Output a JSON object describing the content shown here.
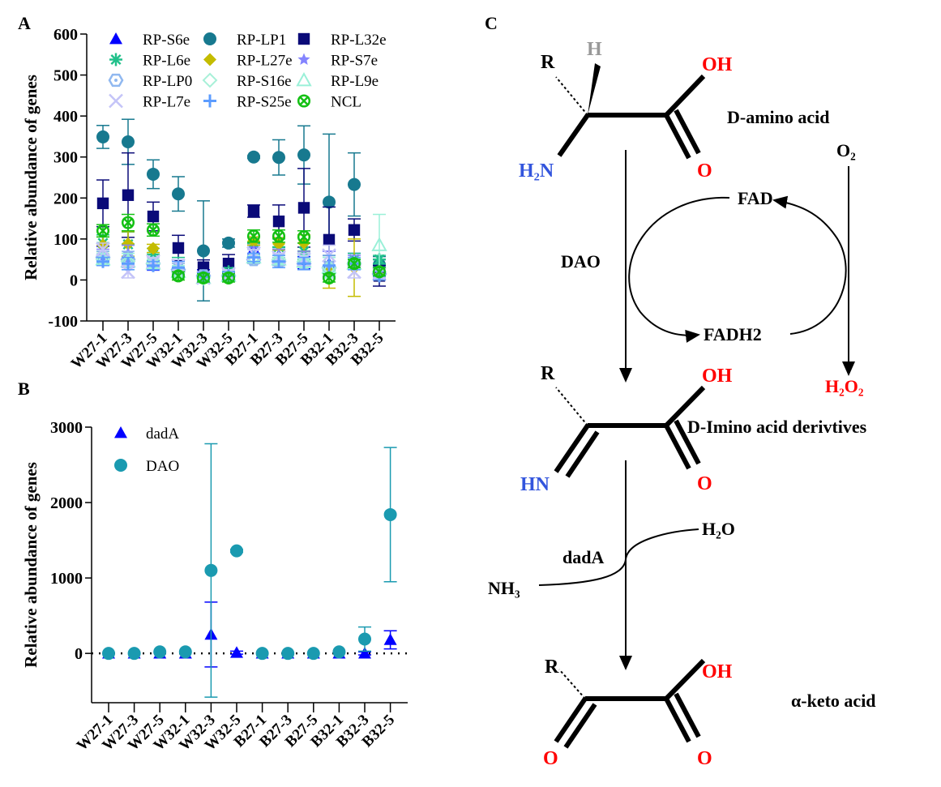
{
  "panels": {
    "a": "A",
    "b": "B",
    "c": "C"
  },
  "chart_data": [
    {
      "type": "scatter",
      "panel": "A",
      "ylabel": "Relative abundance of genes",
      "xlabel": "",
      "ylim": [
        -100,
        600
      ],
      "yticks": [
        -100,
        0,
        100,
        200,
        300,
        400,
        500,
        600
      ],
      "categories": [
        "W27-1",
        "W27-3",
        "W27-5",
        "W32-1",
        "W32-3",
        "W32-5",
        "B27-1",
        "B27-3",
        "B27-5",
        "B32-1",
        "B32-3",
        "B32-5"
      ],
      "legend": "top",
      "series": [
        {
          "name": "RP-S6e",
          "marker": "triangle",
          "color": "#0000ff",
          "values": [
            62,
            60,
            35,
            25,
            10,
            10,
            75,
            60,
            42,
            40,
            50,
            15
          ],
          "errors": [
            20,
            25,
            8,
            20,
            15,
            10,
            10,
            20,
            15,
            30,
            15,
            10
          ]
        },
        {
          "name": "RP-LP1",
          "marker": "circle",
          "color": "#17798f",
          "values": [
            349,
            337,
            258,
            210,
            71,
            90,
            300,
            299,
            305,
            190,
            233,
            37
          ],
          "errors": [
            28,
            55,
            35,
            42,
            122,
            10,
            3,
            43,
            71,
            166,
            77,
            20
          ]
        },
        {
          "name": "RP-L32e",
          "marker": "square",
          "color": "#0a0a78",
          "values": [
            187,
            207,
            155,
            78,
            31,
            40,
            168,
            143,
            176,
            98,
            122,
            10
          ],
          "errors": [
            57,
            103,
            35,
            31,
            18,
            22,
            15,
            40,
            96,
            80,
            27,
            25
          ]
        },
        {
          "name": "RP-L6e",
          "marker": "asterisk",
          "color": "#20c08a",
          "values": [
            90,
            87,
            62,
            30,
            10,
            20,
            90,
            80,
            70,
            35,
            50,
            50
          ],
          "errors": [
            20,
            30,
            15,
            25,
            10,
            10,
            15,
            20,
            20,
            20,
            15,
            10
          ]
        },
        {
          "name": "RP-L27e",
          "marker": "diamond",
          "color": "#c4bc00",
          "values": [
            85,
            88,
            77,
            20,
            5,
            10,
            95,
            88,
            90,
            20,
            30,
            10
          ],
          "errors": [
            20,
            30,
            10,
            20,
            10,
            10,
            10,
            15,
            20,
            40,
            70,
            10
          ]
        },
        {
          "name": "RP-S7e",
          "marker": "star",
          "color": "#8484ff",
          "values": [
            60,
            65,
            45,
            30,
            10,
            15,
            70,
            60,
            55,
            40,
            45,
            20
          ],
          "errors": [
            15,
            20,
            10,
            15,
            10,
            10,
            10,
            15,
            15,
            30,
            15,
            10
          ]
        },
        {
          "name": "RP-LP0",
          "marker": "hexagon",
          "color": "#90b8f0",
          "values": [
            55,
            50,
            40,
            25,
            10,
            10,
            50,
            45,
            40,
            30,
            40,
            15
          ],
          "errors": [
            15,
            20,
            10,
            15,
            10,
            10,
            10,
            10,
            15,
            25,
            15,
            10
          ]
        },
        {
          "name": "RP-S16e",
          "marker": "diamond-open",
          "color": "#a8f0d8",
          "values": [
            50,
            45,
            40,
            20,
            5,
            10,
            55,
            50,
            45,
            30,
            40,
            20
          ],
          "errors": [
            15,
            20,
            10,
            15,
            10,
            10,
            10,
            10,
            15,
            25,
            15,
            10
          ]
        },
        {
          "name": "RP-L9e",
          "marker": "triangle-open",
          "color": "#9af0d8",
          "values": [
            50,
            45,
            40,
            20,
            5,
            10,
            55,
            50,
            45,
            30,
            40,
            85
          ],
          "errors": [
            15,
            20,
            10,
            15,
            10,
            10,
            10,
            10,
            15,
            25,
            15,
            75
          ]
        },
        {
          "name": "RP-L7e",
          "marker": "cross",
          "color": "#c4c4f8",
          "values": [
            75,
            20,
            45,
            35,
            5,
            15,
            65,
            55,
            50,
            60,
            20,
            15
          ],
          "errors": [
            15,
            15,
            10,
            15,
            10,
            10,
            10,
            10,
            15,
            25,
            15,
            10
          ]
        },
        {
          "name": "RP-S25e",
          "marker": "plus",
          "color": "#5c9cff",
          "values": [
            45,
            40,
            35,
            30,
            8,
            10,
            55,
            45,
            40,
            35,
            40,
            10
          ],
          "errors": [
            10,
            15,
            10,
            15,
            10,
            10,
            10,
            15,
            15,
            25,
            15,
            10
          ]
        },
        {
          "name": "NCL",
          "marker": "circle-x",
          "color": "#14c014",
          "values": [
            120,
            140,
            122,
            10,
            5,
            5,
            107,
            107,
            105,
            5,
            40,
            20
          ],
          "errors": [
            15,
            20,
            15,
            10,
            10,
            10,
            15,
            15,
            15,
            10,
            10,
            10
          ]
        }
      ]
    },
    {
      "type": "scatter",
      "panel": "B",
      "ylabel": "Relative abundance of genes",
      "xlabel": "",
      "ylim": [
        -650,
        3000
      ],
      "yticks": [
        0,
        1000,
        2000,
        3000
      ],
      "reference_line": 0,
      "categories": [
        "W27-1",
        "W27-3",
        "W27-5",
        "W32-1",
        "W32-3",
        "W32-5",
        "B27-1",
        "B27-3",
        "B27-5",
        "B32-1",
        "B32-3",
        "B32-5"
      ],
      "legend": "top-left",
      "series": [
        {
          "name": "dadA",
          "marker": "triangle",
          "color": "#0000ff",
          "values": [
            0,
            0,
            0,
            0,
            250,
            10,
            0,
            0,
            0,
            0,
            0,
            180
          ],
          "errors": [
            0,
            0,
            0,
            0,
            430,
            20,
            0,
            0,
            0,
            0,
            20,
            120
          ]
        },
        {
          "name": "DAO",
          "marker": "circle",
          "color": "#1a9ab0",
          "values": [
            0,
            0,
            20,
            20,
            1100,
            1360,
            0,
            0,
            0,
            20,
            190,
            1840
          ],
          "errors": [
            0,
            0,
            0,
            0,
            1680,
            20,
            0,
            0,
            0,
            0,
            160,
            890
          ]
        }
      ]
    }
  ],
  "diagram": {
    "mol1": {
      "r": "R",
      "h": "H",
      "oh": "OH",
      "nh2": "H₂N",
      "o": "O",
      "name": "D-amino acid"
    },
    "mol2": {
      "r": "R",
      "oh": "OH",
      "hn": "HN",
      "o": "O",
      "name": "D-Imino acid derivtives"
    },
    "mol3": {
      "r": "R",
      "oh": "OH",
      "o1": "O",
      "o2": "O",
      "name": "α-keto acid"
    },
    "fad": "FAD",
    "fadh2": "FADH2",
    "dao": "DAO",
    "o2": "O₂",
    "h2o2": "H₂O₂",
    "h2o": "H₂O",
    "dada": "dadA",
    "nh3": "NH₃",
    "colors": {
      "red": "#ff0000",
      "blue": "#3355dd",
      "grey": "#999999"
    }
  }
}
